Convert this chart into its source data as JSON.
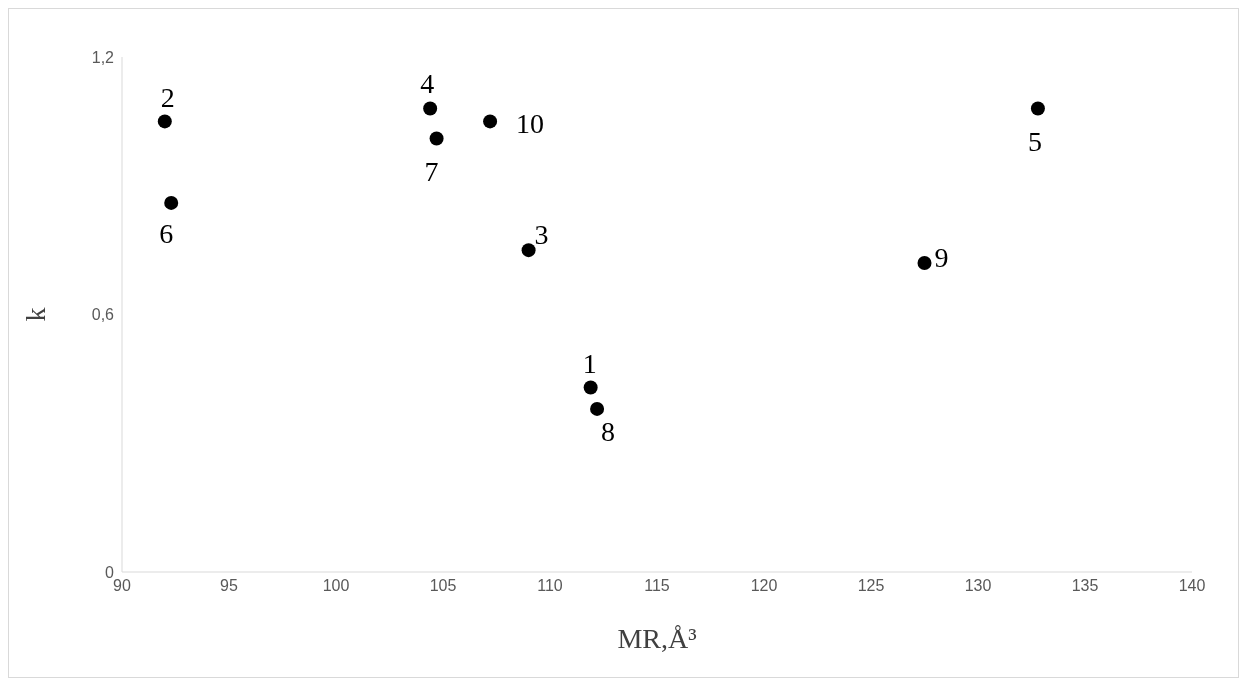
{
  "chart_data": {
    "type": "scatter",
    "xlabel": "MR,Å³",
    "ylabel": "k",
    "xlim": [
      90,
      140
    ],
    "xticks": [
      90,
      95,
      100,
      105,
      110,
      115,
      120,
      125,
      130,
      135,
      140
    ],
    "ylim": [
      0,
      1.2
    ],
    "yticks": [
      0,
      {
        "value": 0.6,
        "label": "0,6"
      },
      {
        "value": 1.2,
        "label": "1,2"
      }
    ],
    "grid": false,
    "legend": false,
    "marker": "circle",
    "series": [
      {
        "color": "#000000",
        "x": [
          111.9,
          92.0,
          109.0,
          104.4,
          132.8,
          92.3,
          104.7,
          112.2,
          127.5,
          107.2
        ],
        "values": [
          0.43,
          1.05,
          0.75,
          1.08,
          1.08,
          0.86,
          1.01,
          0.38,
          0.72,
          1.05
        ]
      }
    ],
    "annotations": [
      {
        "text": "1",
        "x": 111.9,
        "y": 0.43
      },
      {
        "text": "2",
        "x": 92.0,
        "y": 1.05
      },
      {
        "text": "3",
        "x": 109.0,
        "y": 0.75
      },
      {
        "text": "4",
        "x": 104.4,
        "y": 1.08
      },
      {
        "text": "5",
        "x": 132.8,
        "y": 1.08
      },
      {
        "text": "6",
        "x": 92.3,
        "y": 0.86
      },
      {
        "text": "7",
        "x": 104.7,
        "y": 1.01
      },
      {
        "text": "8",
        "x": 112.2,
        "y": 0.38
      },
      {
        "text": "9",
        "x": 127.5,
        "y": 0.72
      },
      {
        "text": "10",
        "x": 107.2,
        "y": 1.05
      }
    ]
  }
}
